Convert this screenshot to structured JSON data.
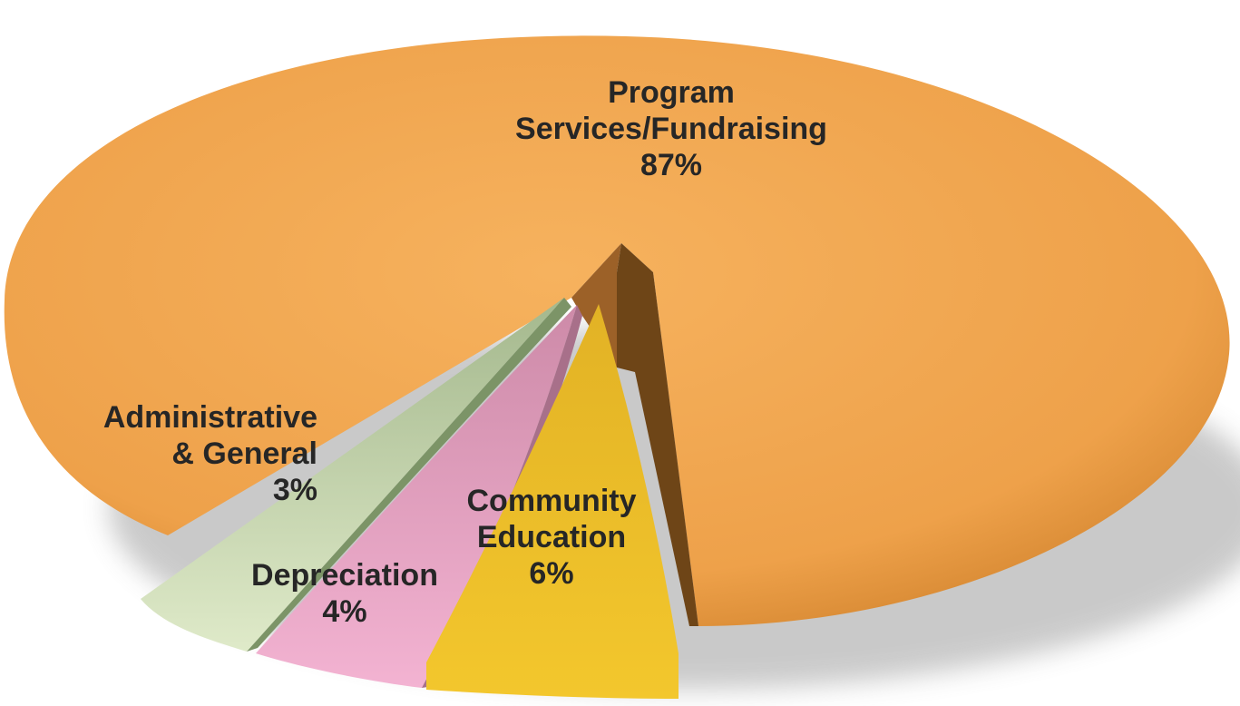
{
  "chart_data": {
    "type": "pie",
    "style": "3d-exploded",
    "title": "",
    "legend": "none",
    "slices": [
      {
        "label_lines": [
          "Program",
          "Services/Fundraising"
        ],
        "percent_label": "87%",
        "value": 87,
        "color": "#f2a54c"
      },
      {
        "label_lines": [
          "Administrative",
          "& General"
        ],
        "percent_label": "3%",
        "value": 3,
        "color": "#b3c79a"
      },
      {
        "label_lines": [
          "Depreciation"
        ],
        "percent_label": "4%",
        "value": 4,
        "color": "#e39bbd"
      },
      {
        "label_lines": [
          "Community",
          "Education"
        ],
        "percent_label": "6%",
        "value": 6,
        "color": "#f0c22a"
      }
    ]
  }
}
